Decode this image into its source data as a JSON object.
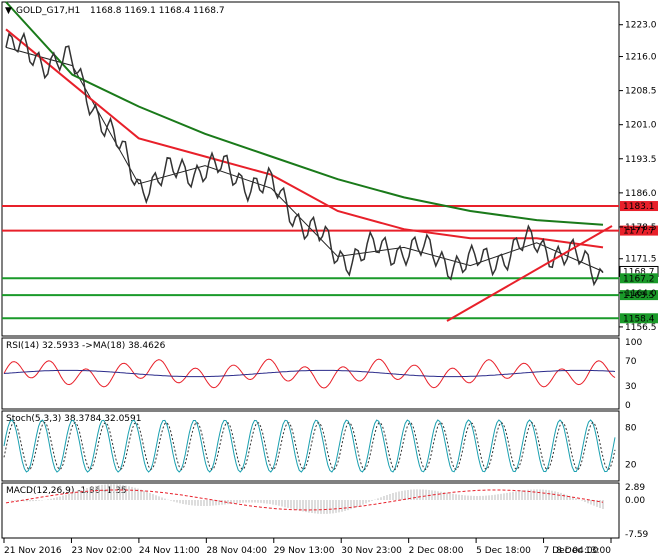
{
  "instrument": "GOLD_G17,H1",
  "ohlc": "1168.8 1169.1 1168.4 1168.7",
  "price_axis": [
    "1223.0",
    "1216.0",
    "1208.5",
    "1201.0",
    "1193.5",
    "1186.0",
    "1178.5",
    "1171.5",
    "1164.0",
    "1156.5"
  ],
  "levels": [
    {
      "label": "1183.1",
      "color": "#e8202a",
      "value": 1183.1
    },
    {
      "label": "1177.7",
      "color": "#e8202a",
      "value": 1177.7
    },
    {
      "label": "1168.7",
      "color": "#ffffff",
      "value": 1168.7
    },
    {
      "label": "1167.2",
      "color": "#1a9a2a",
      "value": 1167.2
    },
    {
      "label": "1163.5",
      "color": "#1a9a2a",
      "value": 1163.5
    },
    {
      "label": "1158.4",
      "color": "#1a9a2a",
      "value": 1158.4
    }
  ],
  "rsi": {
    "label": "RSI(14) 32.5933 ->MA(18) 38.4626",
    "axis": [
      "100",
      "70",
      "30",
      "0"
    ]
  },
  "stoch": {
    "label": "Stoch(5,3,3) 38.3784 32.0591",
    "axis": [
      "80",
      "20"
    ]
  },
  "macd": {
    "label": "MACD(12,26,9) -1.86 -1.35",
    "axis": [
      "2.89",
      "0.00",
      "-7.59"
    ]
  },
  "time_axis": [
    "21 Nov 2016",
    "23 Nov 02:00",
    "24 Nov 11:00",
    "28 Nov 04:00",
    "29 Nov 13:00",
    "30 Nov 23:00",
    "2 Dec 08:00",
    "5 Dec 18:00",
    "7 Dec 04:00",
    "8 Dec 13:00"
  ],
  "chart_data": {
    "type": "line",
    "title": "GOLD_G17,H1",
    "ylim": [
      1154.5,
      1228
    ],
    "x": [
      "21 Nov 2016",
      "23 Nov 02:00",
      "24 Nov 11:00",
      "28 Nov 04:00",
      "29 Nov 13:00",
      "30 Nov 23:00",
      "2 Dec 08:00",
      "5 Dec 18:00",
      "7 Dec 04:00",
      "8 Dec 13:00"
    ],
    "series": [
      {
        "values": [
          1218,
          1214,
          1188,
          1192,
          1187,
          1172,
          1174,
          1170,
          1175,
          1168.7
        ]
      },
      {
        "values": [
          1222,
          1210,
          1198,
          1194,
          1190,
          1182,
          1178,
          1176,
          1176,
          1174
        ]
      },
      {
        "values": [
          1228,
          1212,
          1205,
          1199,
          1194,
          1189,
          1185,
          1182,
          1180,
          1179
        ]
      }
    ]
  }
}
